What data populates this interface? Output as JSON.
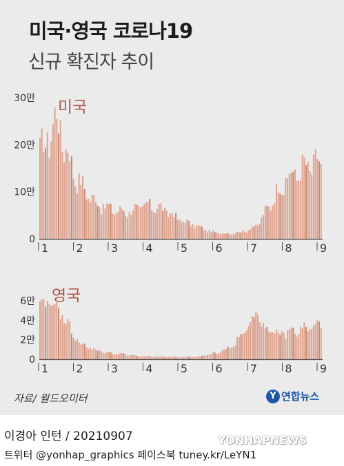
{
  "header": {
    "title": "미국·영국 코로나19",
    "subtitle": "신규 확진자 추이"
  },
  "colors": {
    "bar": "#dfa38f",
    "bar_dark": "#c98771",
    "label": "#b05848",
    "panel": "#ebebeb",
    "logo": "#1d56a8"
  },
  "chart_data": [
    {
      "type": "bar",
      "series_name": "미국",
      "x_unit": "month",
      "x_tick_labels": [
        "1",
        "2",
        "3",
        "4",
        "5",
        "6",
        "7",
        "8",
        "9"
      ],
      "y_tick_labels": [
        "0",
        "10만",
        "20만",
        "30만"
      ],
      "ylim": [
        0,
        300000
      ],
      "knots": [
        [
          1.0,
          190000
        ],
        [
          1.15,
          240000
        ],
        [
          1.35,
          250000
        ],
        [
          1.55,
          200000
        ],
        [
          1.8,
          145000
        ],
        [
          2.1,
          105000
        ],
        [
          2.5,
          75000
        ],
        [
          2.9,
          62000
        ],
        [
          3.3,
          57000
        ],
        [
          3.6,
          62000
        ],
        [
          3.85,
          70000
        ],
        [
          4.1,
          70000
        ],
        [
          4.4,
          62000
        ],
        [
          4.7,
          48000
        ],
        [
          5.0,
          36000
        ],
        [
          5.4,
          25000
        ],
        [
          5.8,
          14000
        ],
        [
          6.2,
          11000
        ],
        [
          6.5,
          13000
        ],
        [
          6.8,
          18000
        ],
        [
          7.1,
          30000
        ],
        [
          7.4,
          68000
        ],
        [
          7.7,
          105000
        ],
        [
          8.0,
          130000
        ],
        [
          8.3,
          145000
        ],
        [
          8.6,
          155000
        ],
        [
          8.9,
          160000
        ],
        [
          9.02,
          155000
        ]
      ]
    },
    {
      "type": "bar",
      "series_name": "영국",
      "x_unit": "month",
      "x_tick_labels": [
        "1",
        "2",
        "3",
        "4",
        "5",
        "6",
        "7",
        "8",
        "9"
      ],
      "y_tick_labels": [
        "0",
        "2만",
        "4만",
        "6만"
      ],
      "ylim": [
        0,
        60000
      ],
      "knots": [
        [
          1.0,
          54000
        ],
        [
          1.15,
          60000
        ],
        [
          1.3,
          58000
        ],
        [
          1.5,
          45000
        ],
        [
          1.75,
          28000
        ],
        [
          2.0,
          16000
        ],
        [
          2.4,
          10000
        ],
        [
          2.8,
          6500
        ],
        [
          3.2,
          5500
        ],
        [
          3.6,
          3500
        ],
        [
          4.0,
          2800
        ],
        [
          4.5,
          2300
        ],
        [
          5.0,
          2300
        ],
        [
          5.4,
          2800
        ],
        [
          5.8,
          5500
        ],
        [
          6.1,
          9000
        ],
        [
          6.4,
          14000
        ],
        [
          6.7,
          27000
        ],
        [
          6.95,
          44000
        ],
        [
          7.05,
          49000
        ],
        [
          7.2,
          38000
        ],
        [
          7.4,
          28000
        ],
        [
          7.6,
          26000
        ],
        [
          8.0,
          28000
        ],
        [
          8.4,
          31000
        ],
        [
          8.8,
          34000
        ],
        [
          9.02,
          36000
        ]
      ]
    }
  ],
  "source": "자료/ 월드오미터",
  "logo": {
    "mark": "Y",
    "text": "연합뉴스"
  },
  "credit": "이경아 인턴 / 20210907",
  "social": "트위터 @yonhap_graphics  페이스북 tuney.kr/LeYN1",
  "watermark": "YONHAPNEWS"
}
